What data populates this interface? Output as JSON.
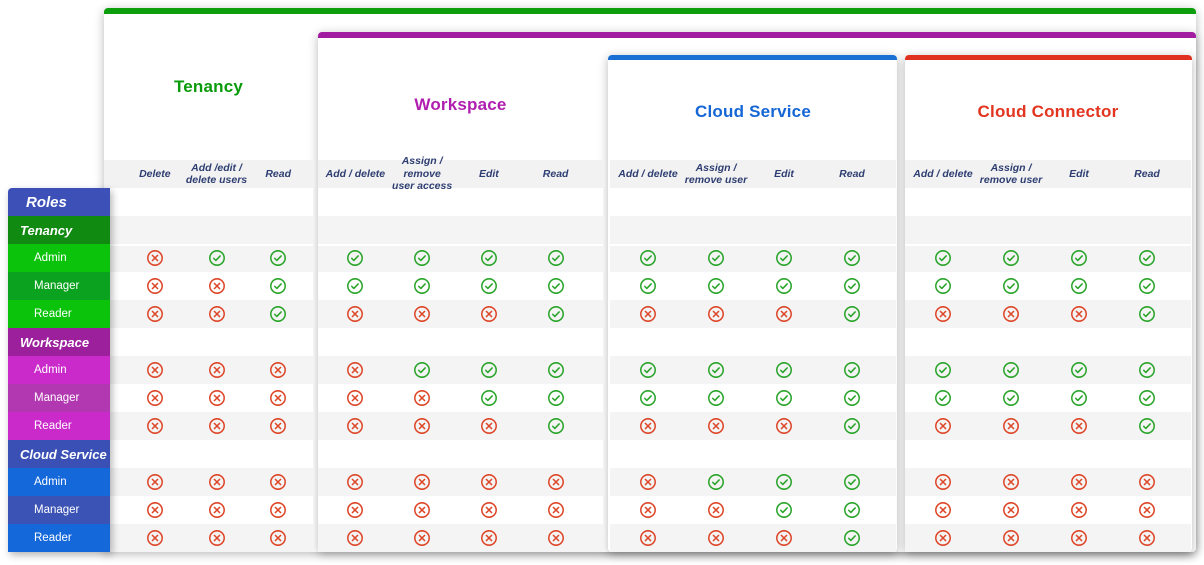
{
  "sidebar": {
    "header": {
      "label": "Roles",
      "bg": "#3c50b8"
    },
    "sections": [
      {
        "label": "Tenancy",
        "bg": "#108a10",
        "role_bg": "#0cc30c",
        "role_alt_bg": "#0aa21e",
        "roles": [
          "Admin",
          "Manager",
          "Reader"
        ]
      },
      {
        "label": "Workspace",
        "bg": "#9c1f9c",
        "role_bg": "#cb2acb",
        "role_alt_bg": "#b238b2",
        "roles": [
          "Admin",
          "Manager",
          "Reader"
        ]
      },
      {
        "label": "Cloud Service",
        "bg": "#3a50b5",
        "role_bg": "#1468da",
        "role_alt_bg": "#3b53b4",
        "roles": [
          "Admin",
          "Manager",
          "Reader"
        ]
      }
    ]
  },
  "groups": [
    {
      "title": "Tenancy",
      "bar_color": "#0d9e0d",
      "title_color": "#0a9b0a",
      "columns": [
        "Delete",
        "Add /edit /\ndelete users",
        "Read"
      ]
    },
    {
      "title": "Workspace",
      "bar_color": "#a21ca2",
      "title_color": "#b01eb0",
      "columns": [
        "Add / delete",
        "Assign / remove\nuser access",
        "Edit",
        "Read"
      ]
    },
    {
      "title": "Cloud Service",
      "bar_color": "#1a6fd4",
      "title_color": "#1566d6",
      "columns": [
        "Add / delete",
        "Assign /\nremove user",
        "Edit",
        "Read"
      ]
    },
    {
      "title": "Cloud Connector",
      "bar_color": "#e0301f",
      "title_color": "#e3341f",
      "columns": [
        "Add / delete",
        "Assign /\nremove user",
        "Edit",
        "Read"
      ]
    }
  ],
  "icon_colors": {
    "check": "#28a428",
    "cross": "#dd4527"
  },
  "stripe_colors": {
    "gray": "#f4f4f4",
    "header_band": "#f2f2f2",
    "white": "#ffffff"
  },
  "matrix": {
    "sections": [
      {
        "section": "Tenancy",
        "rows": [
          {
            "role": "Admin",
            "values": [
              [
                "no",
                "yes",
                "yes"
              ],
              [
                "yes",
                "yes",
                "yes",
                "yes"
              ],
              [
                "yes",
                "yes",
                "yes",
                "yes"
              ],
              [
                "yes",
                "yes",
                "yes",
                "yes"
              ]
            ]
          },
          {
            "role": "Manager",
            "values": [
              [
                "no",
                "no",
                "yes"
              ],
              [
                "yes",
                "yes",
                "yes",
                "yes"
              ],
              [
                "yes",
                "yes",
                "yes",
                "yes"
              ],
              [
                "yes",
                "yes",
                "yes",
                "yes"
              ]
            ]
          },
          {
            "role": "Reader",
            "values": [
              [
                "no",
                "no",
                "yes"
              ],
              [
                "no",
                "no",
                "no",
                "yes"
              ],
              [
                "no",
                "no",
                "no",
                "yes"
              ],
              [
                "no",
                "no",
                "no",
                "yes"
              ]
            ]
          }
        ]
      },
      {
        "section": "Workspace",
        "rows": [
          {
            "role": "Admin",
            "values": [
              [
                "no",
                "no",
                "no"
              ],
              [
                "no",
                "yes",
                "yes",
                "yes"
              ],
              [
                "yes",
                "yes",
                "yes",
                "yes"
              ],
              [
                "yes",
                "yes",
                "yes",
                "yes"
              ]
            ]
          },
          {
            "role": "Manager",
            "values": [
              [
                "no",
                "no",
                "no"
              ],
              [
                "no",
                "no",
                "yes",
                "yes"
              ],
              [
                "yes",
                "yes",
                "yes",
                "yes"
              ],
              [
                "yes",
                "yes",
                "yes",
                "yes"
              ]
            ]
          },
          {
            "role": "Reader",
            "values": [
              [
                "no",
                "no",
                "no"
              ],
              [
                "no",
                "no",
                "no",
                "yes"
              ],
              [
                "no",
                "no",
                "no",
                "yes"
              ],
              [
                "no",
                "no",
                "no",
                "yes"
              ]
            ]
          }
        ]
      },
      {
        "section": "Cloud Service",
        "rows": [
          {
            "role": "Admin",
            "values": [
              [
                "no",
                "no",
                "no"
              ],
              [
                "no",
                "no",
                "no",
                "no"
              ],
              [
                "no",
                "yes",
                "yes",
                "yes"
              ],
              [
                "no",
                "no",
                "no",
                "no"
              ]
            ]
          },
          {
            "role": "Manager",
            "values": [
              [
                "no",
                "no",
                "no"
              ],
              [
                "no",
                "no",
                "no",
                "no"
              ],
              [
                "no",
                "no",
                "yes",
                "yes"
              ],
              [
                "no",
                "no",
                "no",
                "no"
              ]
            ]
          },
          {
            "role": "Reader",
            "values": [
              [
                "no",
                "no",
                "no"
              ],
              [
                "no",
                "no",
                "no",
                "no"
              ],
              [
                "no",
                "no",
                "no",
                "yes"
              ],
              [
                "no",
                "no",
                "no",
                "no"
              ]
            ]
          }
        ]
      }
    ]
  }
}
